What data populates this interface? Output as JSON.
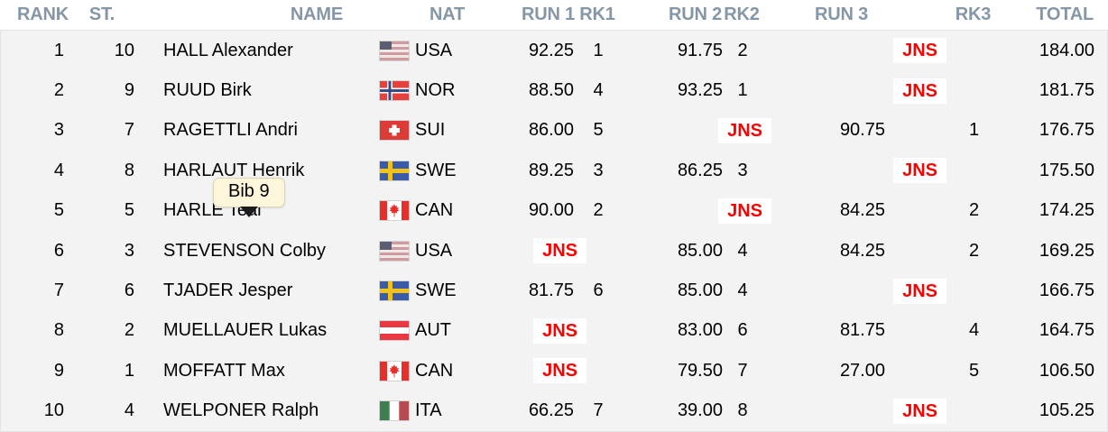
{
  "colors": {
    "header_text": "#8596a6",
    "jns_red": "#ff0000",
    "panel_bg": "#f3f3f4",
    "tooltip_bg": "#fdf6da",
    "row_text": "#000000"
  },
  "tooltip": {
    "text": "Bib 9"
  },
  "table": {
    "columns": [
      {
        "key": "rank",
        "label": "RANK"
      },
      {
        "key": "st",
        "label": "ST."
      },
      {
        "key": "name",
        "label": "NAME"
      },
      {
        "key": "nat",
        "label": "NAT"
      },
      {
        "key": "run1",
        "label": "RUN 1"
      },
      {
        "key": "rk1",
        "label": "RK1"
      },
      {
        "key": "run2",
        "label": "RUN 2"
      },
      {
        "key": "rk2",
        "label": "RK2"
      },
      {
        "key": "run3",
        "label": "RUN 3"
      },
      {
        "key": "rk3",
        "label": "RK3"
      },
      {
        "key": "total",
        "label": "TOTAL"
      }
    ],
    "rows": [
      {
        "rank": "1",
        "st": "10",
        "name": "HALL Alexander",
        "flag": "usa",
        "nat": "USA",
        "run1": "92.25",
        "rk1": "1",
        "run2": "91.75",
        "rk2": "2",
        "run3": "JNS",
        "rk3": "",
        "total": "184.00"
      },
      {
        "rank": "2",
        "st": "9",
        "name": "RUUD Birk",
        "flag": "nor",
        "nat": "NOR",
        "run1": "88.50",
        "rk1": "4",
        "run2": "93.25",
        "rk2": "1",
        "run3": "JNS",
        "rk3": "",
        "total": "181.75"
      },
      {
        "rank": "3",
        "st": "7",
        "name": "RAGETTLI Andri",
        "flag": "sui",
        "nat": "SUI",
        "run1": "86.00",
        "rk1": "5",
        "run2": "JNS",
        "rk2": "",
        "run3": "90.75",
        "rk3": "1",
        "total": "176.75"
      },
      {
        "rank": "4",
        "st": "8",
        "name": "HARLAUT Henrik",
        "flag": "swe",
        "nat": "SWE",
        "run1": "89.25",
        "rk1": "3",
        "run2": "86.25",
        "rk2": "3",
        "run3": "JNS",
        "rk3": "",
        "total": "175.50"
      },
      {
        "rank": "5",
        "st": "5",
        "name": "HARLE Teal",
        "flag": "can",
        "nat": "CAN",
        "run1": "90.00",
        "rk1": "2",
        "run2": "JNS",
        "rk2": "",
        "run3": "84.25",
        "rk3": "2",
        "total": "174.25"
      },
      {
        "rank": "6",
        "st": "3",
        "name": "STEVENSON Colby",
        "flag": "usa",
        "nat": "USA",
        "run1": "JNS",
        "rk1": "",
        "run2": "85.00",
        "rk2": "4",
        "run3": "84.25",
        "rk3": "2",
        "total": "169.25"
      },
      {
        "rank": "7",
        "st": "6",
        "name": "TJADER Jesper",
        "flag": "swe",
        "nat": "SWE",
        "run1": "81.75",
        "rk1": "6",
        "run2": "85.00",
        "rk2": "4",
        "run3": "JNS",
        "rk3": "",
        "total": "166.75"
      },
      {
        "rank": "8",
        "st": "2",
        "name": "MUELLAUER Lukas",
        "flag": "aut",
        "nat": "AUT",
        "run1": "JNS",
        "rk1": "",
        "run2": "83.00",
        "rk2": "6",
        "run3": "81.75",
        "rk3": "4",
        "total": "164.75"
      },
      {
        "rank": "9",
        "st": "1",
        "name": "MOFFATT Max",
        "flag": "can",
        "nat": "CAN",
        "run1": "JNS",
        "rk1": "",
        "run2": "79.50",
        "rk2": "7",
        "run3": "27.00",
        "rk3": "5",
        "total": "106.50"
      },
      {
        "rank": "10",
        "st": "4",
        "name": "WELPONER Ralph",
        "flag": "ita",
        "nat": "ITA",
        "run1": "66.25",
        "rk1": "7",
        "run2": "39.00",
        "rk2": "8",
        "run3": "JNS",
        "rk3": "",
        "total": "105.25"
      }
    ]
  }
}
